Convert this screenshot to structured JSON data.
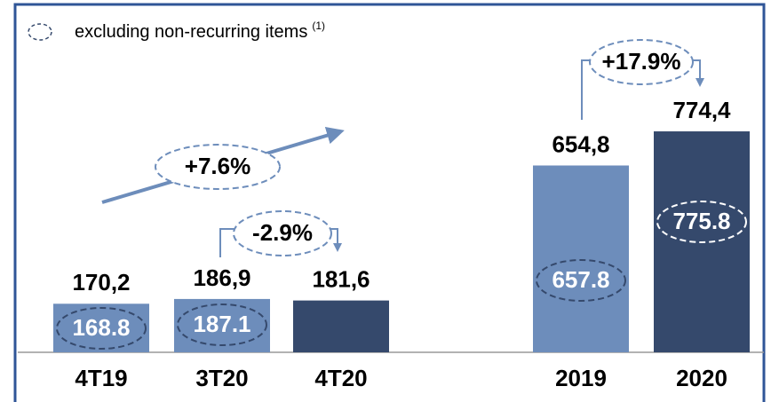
{
  "chart_data": {
    "type": "bar",
    "legend_note": "excluding non-recurring items",
    "footnote_marker": "(1)",
    "categories": [
      "4T19",
      "3T20",
      "4T20",
      "2019",
      "2020"
    ],
    "values": [
      170.2,
      186.9,
      181.6,
      654.8,
      774.4
    ],
    "value_labels": [
      "170,2",
      "186,9",
      "181,6",
      "654,8",
      "774,4"
    ],
    "colors": [
      "#6d8dbb",
      "#6d8dbb",
      "#35496c",
      "#6d8dbb",
      "#35496c"
    ],
    "adjusted_values": [
      168.8,
      187.1,
      null,
      657.8,
      775.8
    ],
    "annotations": [
      "+7.6%",
      "-2.9%",
      "+17.9%"
    ]
  }
}
